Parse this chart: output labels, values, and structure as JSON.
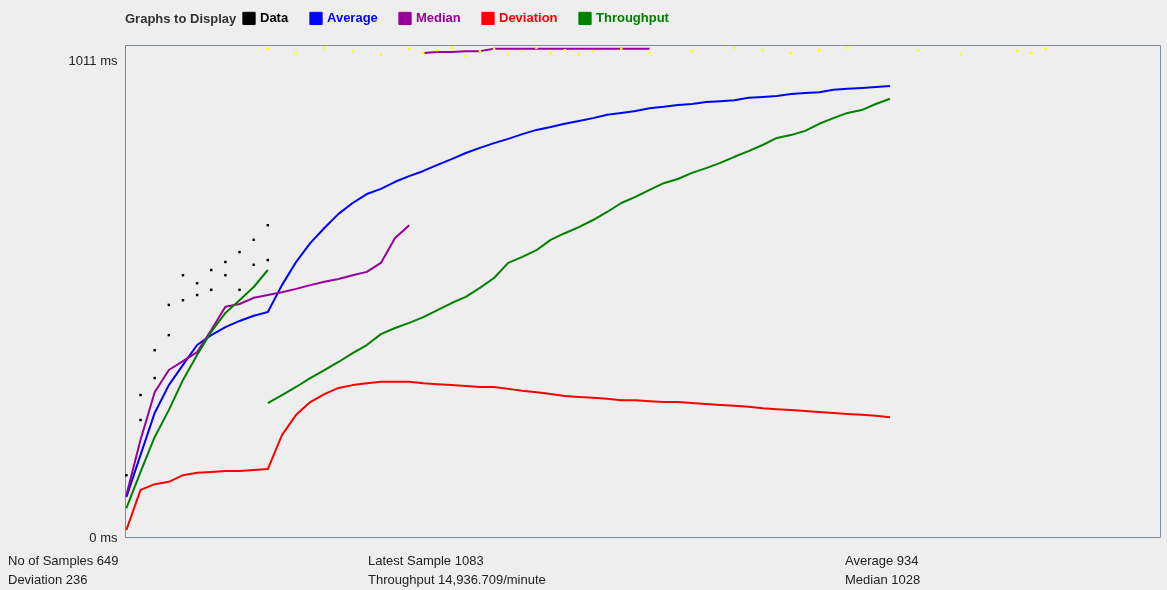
{
  "chart_data": {
    "type": "line",
    "legend_title": "Graphs to Display",
    "legend": "top",
    "grid": false,
    "tick_labels": "y",
    "categories": [
      null,
      null,
      null,
      null,
      null,
      null,
      null,
      null,
      null,
      null,
      null,
      null,
      null,
      null,
      null,
      null,
      null,
      null,
      null,
      null,
      null,
      null,
      null,
      null,
      null,
      null,
      null,
      null,
      null,
      null,
      null,
      null,
      null,
      null,
      null,
      null,
      null,
      null,
      null,
      null,
      null,
      null,
      null,
      null,
      null,
      null,
      null,
      null,
      null,
      null,
      null,
      null,
      null,
      null,
      null,
      null,
      null,
      null,
      null,
      null,
      null,
      null,
      null,
      null,
      null,
      null,
      null,
      null,
      null,
      null,
      null,
      null,
      null,
      null
    ],
    "ylim": [
      0,
      1043
    ],
    "yticks": [
      {
        "value": 0,
        "label": "0 ms"
      },
      {
        "value": 1011,
        "label": "1011 ms"
      }
    ],
    "series": [
      {
        "name": "Data",
        "type": "scatter",
        "color": "#000000",
        "values": [
          131,
          301,
          396,
          492,
          502,
          538,
          566,
          555,
          604,
          630,
          661,
          null,
          null,
          null,
          null,
          null,
          null,
          null,
          null,
          null,
          null,
          null,
          null,
          null,
          null,
          null,
          null,
          null,
          null,
          null,
          null,
          null,
          null,
          null,
          null,
          null,
          null,
          null,
          null,
          null,
          null,
          null,
          null,
          null,
          null,
          null,
          null,
          null,
          null,
          null,
          null,
          null,
          null,
          null,
          null,
          null,
          null,
          null,
          null,
          null,
          null,
          null,
          null,
          null,
          null,
          null,
          null,
          null,
          null,
          null,
          null,
          null,
          null,
          null
        ]
      },
      {
        "type": "scatter",
        "color": "#000000",
        "values": [
          null,
          248,
          337,
          428,
          555,
          513,
          524,
          583,
          524,
          577,
          587,
          null,
          null,
          null,
          null,
          null,
          null,
          null,
          null,
          null,
          null,
          null,
          null,
          null,
          null,
          null,
          null,
          null,
          null,
          null,
          null,
          null,
          null,
          null,
          null,
          null,
          null,
          null,
          null,
          null,
          null,
          null,
          null,
          null,
          null,
          null,
          null,
          null,
          null,
          null,
          null,
          null,
          null,
          null,
          null,
          null,
          null,
          null,
          null,
          null,
          null,
          null,
          null,
          null,
          null,
          null,
          null,
          null,
          null,
          null,
          null,
          null,
          null,
          null
        ]
      },
      {
        "type": "scatter",
        "color": "#ffff00",
        "values": [
          null,
          null,
          null,
          null,
          null,
          null,
          null,
          null,
          null,
          null,
          1035,
          null,
          1026,
          null,
          1037,
          null,
          1030,
          null,
          1022,
          null,
          1035,
          1026,
          1032,
          1037,
          1020,
          1030,
          1035,
          1024,
          1030,
          1037,
          1026,
          1032,
          1022,
          1030,
          null,
          1035,
          null,
          1026,
          null,
          null,
          1030,
          null,
          null,
          1037,
          null,
          1032,
          null,
          1026,
          null,
          1032,
          null,
          1037,
          null,
          null,
          null,
          null,
          1032,
          null,
          null,
          1024,
          null,
          null,
          null,
          1030,
          1026,
          1035,
          null,
          null,
          null,
          null,
          null,
          null,
          null,
          null
        ]
      },
      {
        "name": "Average",
        "color": "#0000ff",
        "values": [
          85,
          174,
          263,
          322,
          365,
          407,
          428,
          445,
          458,
          469,
          477,
          534,
          583,
          623,
          655,
          685,
          708,
          727,
          738,
          753,
          765,
          776,
          789,
          801,
          814,
          825,
          835,
          844,
          854,
          863,
          869,
          876,
          882,
          888,
          895,
          899,
          903,
          909,
          912,
          916,
          918,
          922,
          924,
          926,
          931,
          933,
          935,
          939,
          941,
          943,
          948,
          950,
          952,
          954,
          956,
          null,
          null,
          null,
          null,
          null,
          null,
          null,
          null,
          null,
          null,
          null,
          null,
          null,
          null,
          null,
          null,
          null,
          null,
          null
        ]
      },
      {
        "name": "Median",
        "color": "#990099",
        "values": [
          89,
          206,
          307,
          354,
          373,
          392,
          439,
          488,
          494,
          507,
          513,
          519,
          526,
          534,
          541,
          547,
          555,
          562,
          581,
          634,
          661,
          null,
          null,
          null,
          null,
          null,
          null,
          null,
          null,
          null,
          null,
          null,
          null,
          null,
          null,
          null,
          null,
          null,
          null,
          null,
          null,
          null,
          null,
          null,
          null,
          null,
          null,
          null,
          null,
          null,
          null,
          null,
          null,
          null,
          null,
          null,
          null,
          null,
          null,
          null,
          null,
          null,
          null,
          null,
          null,
          null,
          null,
          null,
          null,
          null,
          null,
          null,
          null,
          null
        ]
      },
      {
        "color": "#990099",
        "values": [
          null,
          null,
          null,
          null,
          null,
          null,
          null,
          null,
          null,
          null,
          null,
          null,
          null,
          null,
          null,
          null,
          null,
          null,
          null,
          null,
          null,
          1026,
          1028,
          1028,
          1030,
          1030,
          1035,
          1035,
          1035,
          1035,
          1035,
          1035,
          1035,
          1035,
          1035,
          1035,
          1035,
          1035,
          null,
          null,
          null,
          null,
          null,
          null,
          null,
          null,
          null,
          null,
          null,
          null,
          null,
          null,
          null,
          null,
          null,
          null,
          null,
          null,
          null,
          null,
          null,
          null,
          null,
          null,
          null,
          null,
          null,
          null,
          null,
          null,
          null,
          null,
          null,
          null
        ]
      },
      {
        "name": "Deviation",
        "color": "#ff0000",
        "values": [
          15,
          100,
          112,
          117,
          131,
          136,
          138,
          140,
          140,
          142,
          144,
          216,
          259,
          286,
          303,
          316,
          322,
          326,
          329,
          329,
          329,
          326,
          324,
          322,
          320,
          318,
          318,
          314,
          310,
          307,
          303,
          299,
          297,
          295,
          293,
          290,
          290,
          288,
          286,
          286,
          284,
          282,
          280,
          278,
          276,
          273,
          271,
          269,
          267,
          265,
          263,
          261,
          259,
          257,
          254,
          null,
          null,
          null,
          null,
          null,
          null,
          null,
          null,
          null,
          null,
          null,
          null,
          null,
          null,
          null,
          null,
          null,
          null,
          null
        ]
      },
      {
        "name": "Throughput",
        "color": "#008000",
        "values": [
          61,
          138,
          212,
          269,
          333,
          386,
          435,
          475,
          502,
          530,
          566,
          null,
          null,
          null,
          null,
          null,
          null,
          null,
          null,
          null,
          null,
          null,
          null,
          null,
          null,
          null,
          null,
          null,
          null,
          null,
          null,
          null,
          null,
          null,
          null,
          null,
          null,
          null,
          null,
          null,
          null,
          null,
          null,
          null,
          null,
          null,
          null,
          null,
          null,
          null,
          null,
          null,
          null,
          null,
          null,
          null,
          null,
          null,
          null,
          null,
          null,
          null,
          null,
          null,
          null,
          null,
          null,
          null,
          null,
          null,
          null,
          null,
          null,
          null
        ]
      },
      {
        "color": "#008000",
        "values": [
          null,
          null,
          null,
          null,
          null,
          null,
          null,
          null,
          null,
          null,
          284,
          301,
          318,
          337,
          354,
          371,
          390,
          407,
          430,
          443,
          454,
          466,
          481,
          496,
          509,
          528,
          549,
          581,
          594,
          608,
          630,
          644,
          657,
          672,
          689,
          708,
          721,
          736,
          750,
          759,
          772,
          782,
          793,
          806,
          818,
          831,
          846,
          852,
          861,
          876,
          888,
          899,
          905,
          918,
          929,
          null,
          null,
          null,
          null,
          null,
          null,
          null,
          null,
          null,
          null,
          null,
          null,
          null,
          null,
          null,
          null,
          null,
          null,
          null
        ]
      }
    ],
    "annotations": [
      "No of Samples 649",
      "Latest Sample 1083",
      "Average 934",
      "Deviation 236",
      "Throughput 14,936.709/minute",
      "Median 1028"
    ]
  }
}
